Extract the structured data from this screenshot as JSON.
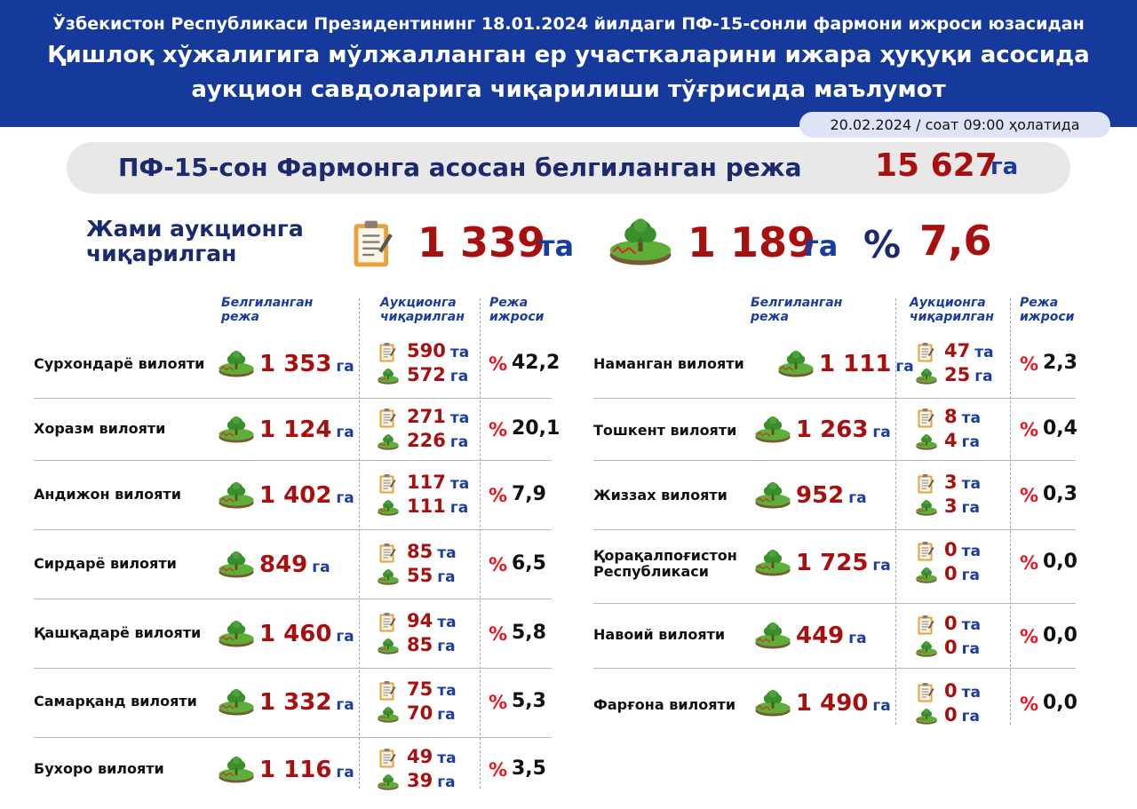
{
  "header": {
    "subtitle": "Ўзбекистон Республикаси Президентининг 18.01.2024 йилдаги ПФ-15-сонли фармони ижроси юзасидан",
    "title_line1": "Қишлоқ хўжалигига мўлжалланган ер участкаларини ижара ҳуқуқи асосида",
    "title_line2": "аукцион савдоларига чиқарилиши тўғрисида маълумот",
    "date": "20.02.2024 / соат 09:00 ҳолатида"
  },
  "plan": {
    "label": "ПФ-15-сон Фармонга асосан белгиланган режа",
    "value": "15 627",
    "unit": "га"
  },
  "total": {
    "label_line1": "Жами аукционга",
    "label_line2": "чиқарилган",
    "count": "1 339",
    "count_unit": "та",
    "area": "1 189",
    "area_unit": "га",
    "pct_sign": "%",
    "pct": "7,6"
  },
  "columns": {
    "plan_l1": "Белгиланган",
    "plan_l2": "режа",
    "auction_l1": "Аукционга",
    "auction_l2": "чиқарилган",
    "exec_l1": "Режа",
    "exec_l2": "ижроси"
  },
  "units": {
    "ha": "га",
    "pcs": "та",
    "pct": "%"
  },
  "icons": {
    "document": "clipboard-icon",
    "land": "land-plot-icon"
  },
  "colors": {
    "header_bg": "#153a9c",
    "accent_red": "#a81010",
    "unit_blue": "#1a3ca0",
    "pct_red": "#e8141e"
  },
  "regions_left": [
    {
      "name": "Сурхондарё вилояти",
      "plan": "1 353",
      "count": "590",
      "area": "572",
      "pct": "42,2"
    },
    {
      "name": "Хоразм вилояти",
      "plan": "1 124",
      "count": "271",
      "area": "226",
      "pct": "20,1"
    },
    {
      "name": "Андижон вилояти",
      "plan": "1 402",
      "count": "117",
      "area": "111",
      "pct": "7,9"
    },
    {
      "name": "Сирдарё вилояти",
      "plan": "849",
      "count": "85",
      "area": "55",
      "pct": "6,5"
    },
    {
      "name": "Қашқадарё вилояти",
      "plan": "1 460",
      "count": "94",
      "area": "85",
      "pct": "5,8"
    },
    {
      "name": "Самарқанд вилояти",
      "plan": "1 332",
      "count": "75",
      "area": "70",
      "pct": "5,3"
    },
    {
      "name": "Бухоро вилояти",
      "plan": "1 116",
      "count": "49",
      "area": "39",
      "pct": "3,5"
    }
  ],
  "regions_right": [
    {
      "name": "Наманган вилояти",
      "plan": "1 111",
      "count": "47",
      "area": "25",
      "pct": "2,3"
    },
    {
      "name": "Тошкент вилояти",
      "plan": "1 263",
      "count": "8",
      "area": "4",
      "pct": "0,4"
    },
    {
      "name": "Жиззах вилояти",
      "plan": "952",
      "count": "3",
      "area": "3",
      "pct": "0,3"
    },
    {
      "name": "Қорақалпоғистон Республикаси",
      "plan": "1 725",
      "count": "0",
      "area": "0",
      "pct": "0,0"
    },
    {
      "name": "Навоий вилояти",
      "plan": "449",
      "count": "0",
      "area": "0",
      "pct": "0,0"
    },
    {
      "name": "Фарғона вилояти",
      "plan": "1 490",
      "count": "0",
      "area": "0",
      "pct": "0,0"
    }
  ]
}
